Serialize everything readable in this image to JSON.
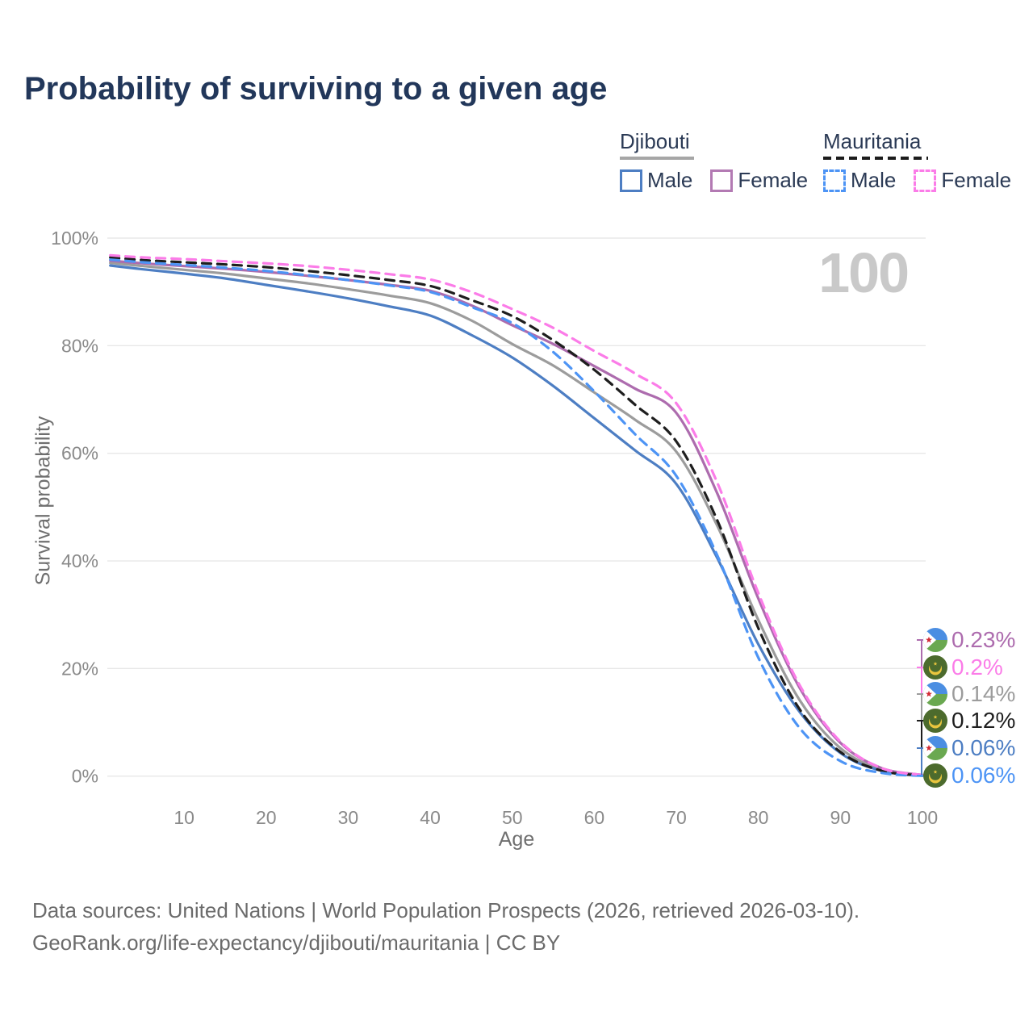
{
  "title": "Probability of surviving to a given age",
  "watermark": "100",
  "legend": {
    "djibouti": {
      "name": "Djibouti",
      "male_label": "Male",
      "female_label": "Female"
    },
    "mauritania": {
      "name": "Mauritania",
      "male_label": "Male",
      "female_label": "Female"
    }
  },
  "axes": {
    "x_label": "Age",
    "y_label": "Survival probability"
  },
  "chart_data": {
    "type": "line",
    "title": "Probability of surviving to a given age",
    "xlabel": "Age",
    "ylabel": "Survival probability",
    "xlim": [
      0,
      100
    ],
    "ylim": [
      0,
      100
    ],
    "x_ticks": [
      10,
      20,
      30,
      40,
      50,
      60,
      70,
      80,
      90,
      100
    ],
    "y_ticks": [
      0,
      20,
      40,
      60,
      80,
      100
    ],
    "y_tick_labels": [
      "0%",
      "20%",
      "40%",
      "60%",
      "80%",
      "100%"
    ],
    "grid": "horizontal",
    "legend_position": "top-right",
    "ages": [
      1,
      5,
      10,
      15,
      20,
      25,
      30,
      35,
      40,
      45,
      50,
      55,
      60,
      65,
      70,
      75,
      80,
      85,
      90,
      95,
      100
    ],
    "series": [
      {
        "key": "djibouti_male",
        "name": "Djibouti Male",
        "color": "#4d7ec3",
        "dash": false,
        "values": [
          94.9,
          94.2,
          93.4,
          92.5,
          91.3,
          90.1,
          88.8,
          87.3,
          85.6,
          82.0,
          77.8,
          72.5,
          66.5,
          60.5,
          54.3,
          40.5,
          24.5,
          12.0,
          4.3,
          1.0,
          0.06
        ]
      },
      {
        "key": "djibouti_female",
        "name": "Djibouti Female",
        "color": "#ad6cae",
        "dash": false,
        "values": [
          95.8,
          95.3,
          94.8,
          94.3,
          93.7,
          93.0,
          92.2,
          91.3,
          90.2,
          87.5,
          83.8,
          80.3,
          76.2,
          72.0,
          67.5,
          52.5,
          33.0,
          16.5,
          6.2,
          1.5,
          0.23
        ]
      },
      {
        "key": "djibouti_total",
        "name": "Djibouti (both sexes)",
        "color": "#9c9c9c",
        "dash": false,
        "values": [
          95.4,
          94.8,
          94.1,
          93.4,
          92.5,
          91.6,
          90.5,
          89.3,
          87.9,
          84.7,
          80.3,
          76.3,
          71.3,
          66.2,
          60.3,
          46.5,
          29.0,
          14.2,
          5.2,
          1.2,
          0.14
        ]
      },
      {
        "key": "mauritania_male",
        "name": "Mauritania Male",
        "color": "#4d94f5",
        "dash": true,
        "values": [
          96.0,
          95.5,
          95.0,
          94.5,
          93.9,
          93.1,
          92.2,
          91.2,
          90.0,
          87.2,
          84.2,
          78.8,
          71.5,
          63.5,
          55.8,
          41.0,
          22.0,
          9.0,
          2.8,
          0.6,
          0.06
        ]
      },
      {
        "key": "mauritania_female",
        "name": "Mauritania Female",
        "color": "#fb7ce8",
        "dash": true,
        "values": [
          96.8,
          96.4,
          96.1,
          95.7,
          95.3,
          94.8,
          94.1,
          93.3,
          92.3,
          90.0,
          86.8,
          83.3,
          79.0,
          74.8,
          69.3,
          54.5,
          34.0,
          17.0,
          6.4,
          1.5,
          0.2
        ]
      },
      {
        "key": "mauritania_total",
        "name": "Mauritania (both sexes)",
        "color": "#1e1e1e",
        "dash": true,
        "values": [
          96.4,
          95.9,
          95.5,
          95.1,
          94.6,
          93.9,
          93.1,
          92.2,
          91.1,
          88.5,
          85.5,
          81.0,
          75.5,
          69.0,
          62.2,
          47.5,
          27.5,
          12.5,
          4.5,
          1.0,
          0.12
        ]
      }
    ]
  },
  "end_labels": [
    {
      "flag": "djibouti",
      "value": "0.23%",
      "series": "djibouti_female"
    },
    {
      "flag": "mauritania",
      "value": "0.2%",
      "series": "mauritania_female"
    },
    {
      "flag": "djibouti",
      "value": "0.14%",
      "series": "djibouti_total"
    },
    {
      "flag": "mauritania",
      "value": "0.12%",
      "series": "mauritania_total"
    },
    {
      "flag": "djibouti",
      "value": "0.06%",
      "series": "djibouti_male"
    },
    {
      "flag": "mauritania",
      "value": "0.06%",
      "series": "mauritania_male"
    }
  ],
  "footer": {
    "line1": "Data sources: United Nations | World Population Prospects (2026, retrieved 2026-03-10).",
    "line2": "GeoRank.org/life-expectancy/djibouti/mauritania | CC BY"
  }
}
